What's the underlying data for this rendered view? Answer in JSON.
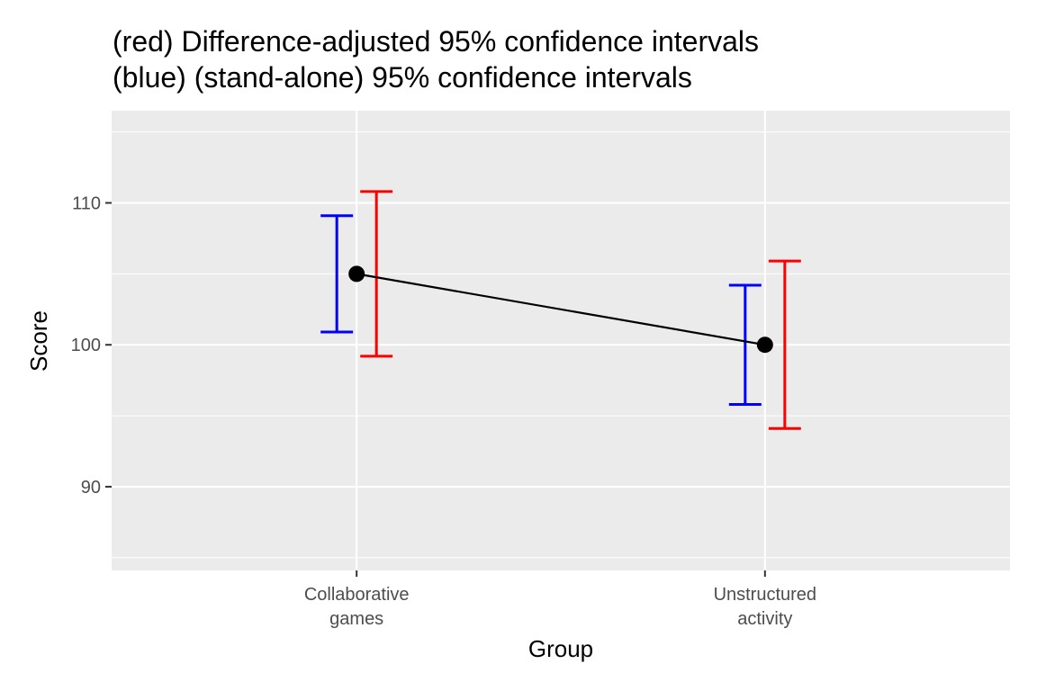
{
  "chart_data": {
    "type": "errorbar",
    "title_lines": [
      "(red) Difference-adjusted 95% confidence intervals",
      "(blue) (stand-alone) 95% confidence intervals"
    ],
    "xlabel": "Group",
    "ylabel": "Score",
    "categories": [
      [
        "Collaborative",
        "games"
      ],
      [
        "Unstructured",
        "activity"
      ]
    ],
    "ylim": [
      84.1,
      116.5
    ],
    "yticks": [
      90,
      100,
      110
    ],
    "grid": true,
    "means": [
      105,
      100
    ],
    "series": [
      {
        "name": "(red) Difference-adjusted 95% confidence intervals",
        "color": "#ff0000",
        "lower": [
          99.2,
          94.1
        ],
        "upper": [
          110.8,
          105.9
        ]
      },
      {
        "name": "(blue) (stand-alone) 95% confidence intervals",
        "color": "#0000ff",
        "lower": [
          100.9,
          95.8
        ],
        "upper": [
          109.1,
          104.2
        ]
      }
    ],
    "line_color": "#000000",
    "panel_color": "#ebebeb"
  }
}
